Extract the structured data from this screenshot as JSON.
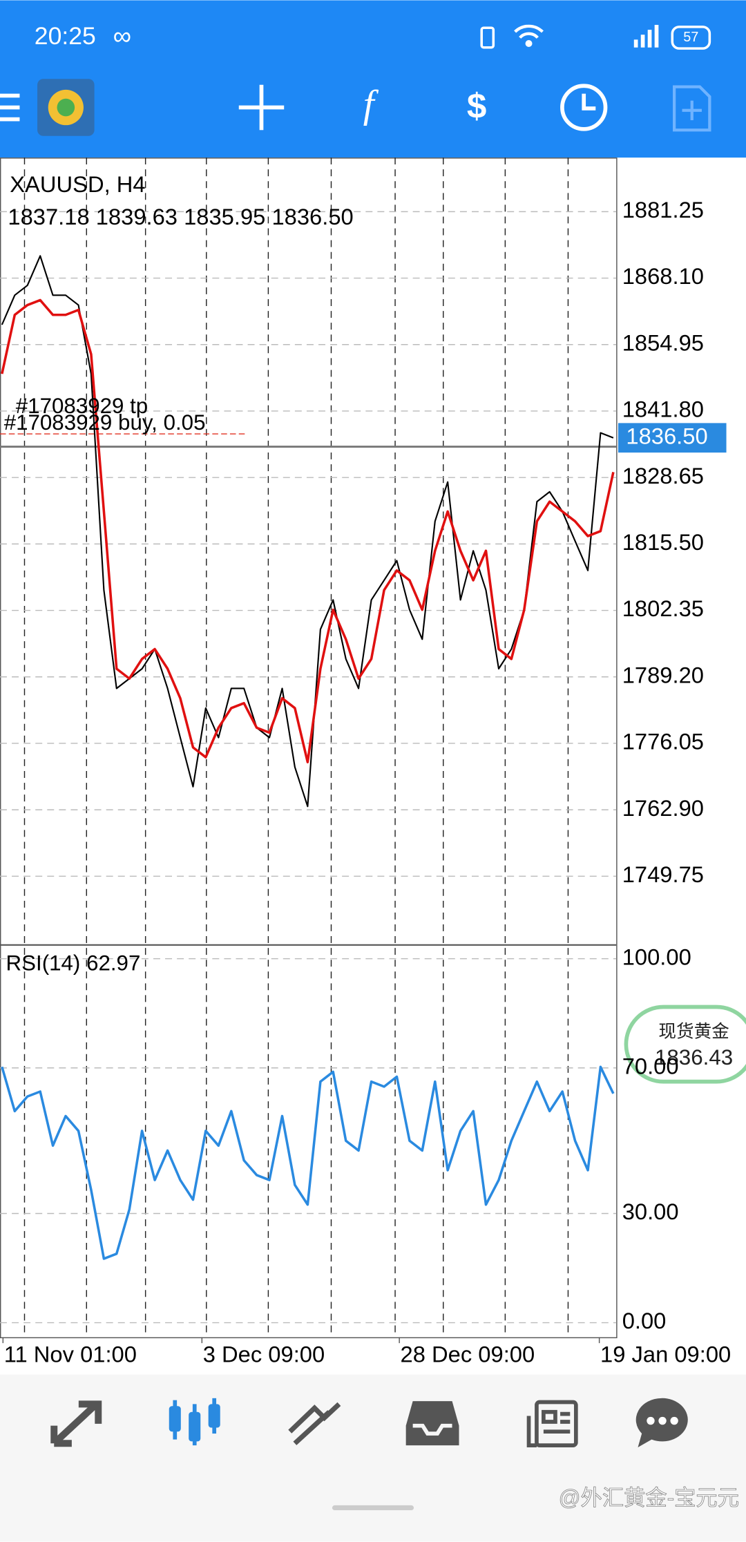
{
  "status_bar": {
    "time": "20:25",
    "battery": "57"
  },
  "toolbar": {
    "function_icon": "f"
  },
  "chart_data": [
    {
      "type": "line",
      "title": "XAUUSD, H4",
      "subtitle": "1837.18 1839.63 1835.95 1836.50",
      "xlim": [
        0,
        48
      ],
      "xticks": [
        {
          "value": 0.08,
          "label": "11 Nov 01:00"
        },
        {
          "value": 15.7,
          "label": "3 Dec 09:00"
        },
        {
          "value": 31.2,
          "label": "28 Dec 09:00"
        },
        {
          "value": 46.9,
          "label": "19 Jan 09:00"
        }
      ],
      "xgrid": [
        1.77,
        6.64,
        11.27,
        16.05,
        20.91,
        25.85,
        30.87,
        34.65,
        39.51,
        44.45
      ],
      "ylim": [
        1736.34,
        1891.95
      ],
      "yticks": [
        1881.25,
        {
          "value": 1868.1,
          "label": "1868.10"
        },
        1854.95,
        {
          "value": 1841.8,
          "label": "1841.80"
        },
        1828.65,
        {
          "value": 1815.5,
          "label": "1815.50"
        },
        1802.35,
        {
          "value": 1789.2,
          "label": "1789.20"
        },
        1776.05,
        {
          "value": 1762.9,
          "label": "1762.90"
        },
        1749.75
      ],
      "grid": true,
      "series": [
        {
          "color": "#000000",
          "values": [
            1858.88,
            1864.72,
            1866.66,
            1872.5,
            1864.72,
            1864.72,
            1862.77,
            1849.16,
            1806.36,
            1786.91,
            1788.85,
            1790.8,
            1794.69,
            1786.91,
            1777.18,
            1767.46,
            1783.02,
            1777.18,
            1786.91,
            1786.91,
            1779.13,
            1777.18,
            1786.91,
            1771.35,
            1763.57,
            1798.58,
            1804.42,
            1792.75,
            1786.91,
            1804.42,
            1808.31,
            1812.2,
            1802.47,
            1796.64,
            1819.98,
            1827.76,
            1804.42,
            1814.14,
            1806.36,
            1790.8,
            1794.69,
            1802.47,
            1823.87,
            1825.81,
            1821.92,
            1816.09,
            1810.25,
            1837.48,
            1836.5
          ]
        },
        {
          "color": "#e01010",
          "values": [
            1849.16,
            1860.83,
            1862.77,
            1863.74,
            1860.83,
            1860.83,
            1861.8,
            1853.05,
            1821.92,
            1790.8,
            1788.85,
            1792.75,
            1794.69,
            1790.8,
            1784.97,
            1775.24,
            1773.3,
            1779.13,
            1783.02,
            1783.99,
            1779.13,
            1778.16,
            1784.97,
            1783.02,
            1772.32,
            1790.8,
            1802.47,
            1796.64,
            1788.85,
            1792.75,
            1806.36,
            1810.25,
            1808.31,
            1802.47,
            1814.14,
            1821.92,
            1814.14,
            1808.31,
            1814.14,
            1794.69,
            1792.75,
            1802.47,
            1819.98,
            1823.87,
            1821.92,
            1819.98,
            1817.06,
            1818.03,
            1829.7
          ]
        }
      ],
      "current_price": {
        "value": 1836.5,
        "label": "1836.50"
      },
      "order_labels": [
        "#17083929 tp",
        "#17083929 buy, 0.05"
      ]
    },
    {
      "type": "line",
      "title": "RSI(14) 62.97",
      "xlim": [
        0,
        48
      ],
      "ylim": [
        -4,
        103.5
      ],
      "yticks": [
        {
          "value": 100,
          "label": "100.00"
        },
        {
          "value": 70,
          "label": "70.00"
        },
        {
          "value": 30,
          "label": "30.00"
        },
        {
          "value": 0,
          "label": "0.00"
        }
      ],
      "grid": true,
      "series": [
        {
          "color": "#2a8ae0",
          "values": [
            70.27,
            58.11,
            62.16,
            63.51,
            48.65,
            56.76,
            52.7,
            36.49,
            17.57,
            18.92,
            31.08,
            52.7,
            39.19,
            47.3,
            39.19,
            33.78,
            52.7,
            48.65,
            58.11,
            44.59,
            40.54,
            39.19,
            56.76,
            37.84,
            32.43,
            66.22,
            68.92,
            50,
            47.3,
            66.22,
            64.86,
            67.57,
            50,
            47.3,
            66.22,
            41.89,
            52.7,
            58.11,
            32.43,
            39.19,
            50,
            58.11,
            66.22,
            58.11,
            63.51,
            50,
            41.89,
            70.27,
            62.97
          ]
        }
      ]
    }
  ],
  "price_widget": {
    "name": "现货黄金",
    "price": "1836.43"
  },
  "watermark": "@外汇黄金-宝元元"
}
